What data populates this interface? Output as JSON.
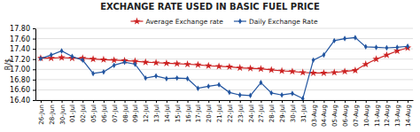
{
  "chart_data": {
    "type": "line",
    "title": "EXCHANGE RATE USED IN BASIC FUEL PRICE",
    "y_label": "R/$",
    "categories": [
      "26-Jun",
      "28-Jun",
      "30-Jun",
      "01-Jul",
      "02-Jul",
      "05-Jul",
      "06-Jul",
      "07-Jul",
      "08-Jul",
      "09-Jul",
      "12-Jul",
      "13-Jul",
      "14-Jul",
      "15-Jul",
      "16-Jul",
      "17-Jul",
      "20-Jul",
      "21-Jul",
      "22-Jul",
      "23-Jul",
      "24-Jul",
      "27-Jul",
      "28-Jul",
      "29-Jul",
      "30-Jul",
      "31-Jul",
      "03-Aug",
      "04-Aug",
      "05-Aug",
      "06-Aug",
      "07-Aug",
      "10-Aug",
      "11-Aug",
      "12-Aug",
      "13-Aug",
      "14-Aug"
    ],
    "series": [
      {
        "name": "Average Exchange rate",
        "color": "#CC2222",
        "marker": "star",
        "values": [
          17.22,
          17.22,
          17.23,
          17.22,
          17.22,
          17.2,
          17.19,
          17.18,
          17.17,
          17.16,
          17.14,
          17.13,
          17.12,
          17.11,
          17.1,
          17.09,
          17.07,
          17.06,
          17.05,
          17.03,
          17.02,
          17.01,
          16.99,
          16.97,
          16.96,
          16.94,
          16.93,
          16.93,
          16.94,
          16.96,
          16.98,
          17.1,
          17.2,
          17.28,
          17.36,
          17.42
        ]
      },
      {
        "name": "Daily Exchange Rate",
        "color": "#2255A0",
        "marker": "diamond",
        "values": [
          17.21,
          17.28,
          17.36,
          17.25,
          17.18,
          16.92,
          16.95,
          17.08,
          17.14,
          17.1,
          16.83,
          16.87,
          16.82,
          16.83,
          16.82,
          16.63,
          16.67,
          16.7,
          16.55,
          16.5,
          16.49,
          16.74,
          16.54,
          16.5,
          16.53,
          16.43,
          17.18,
          17.28,
          17.56,
          17.6,
          17.62,
          17.44,
          17.43,
          17.42,
          17.43,
          17.45
        ]
      }
    ],
    "ylim": [
      16.4,
      17.8
    ],
    "yticks": [
      {
        "value": 16.4,
        "label": "16.40"
      },
      {
        "value": 16.6,
        "label": "16.60"
      },
      {
        "value": 16.8,
        "label": "16.80"
      },
      {
        "value": 17.0,
        "label": "17.00"
      },
      {
        "value": 17.2,
        "label": "17.20"
      },
      {
        "value": 17.4,
        "label": "17.40"
      },
      {
        "value": 17.6,
        "label": "17.60"
      },
      {
        "value": 17.8,
        "label": "17.80"
      }
    ],
    "grid": true,
    "legend": "upper center"
  }
}
